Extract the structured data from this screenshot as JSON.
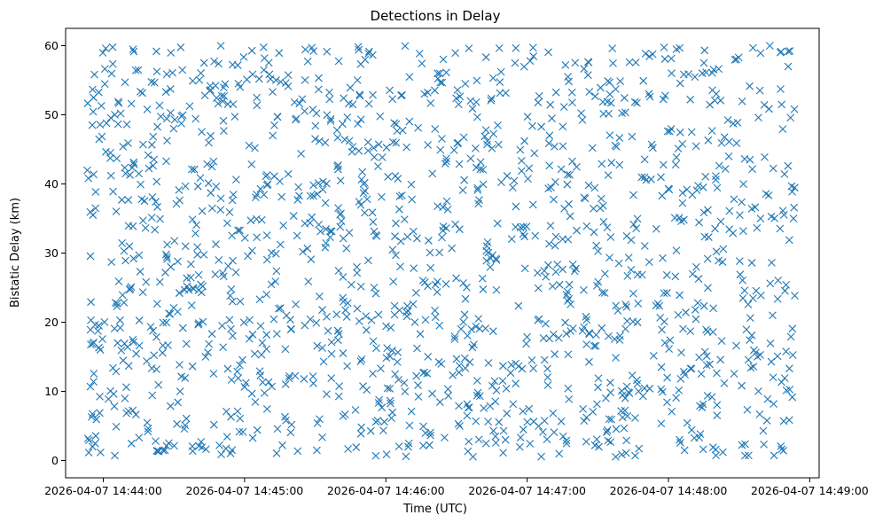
{
  "chart_data": {
    "type": "scatter",
    "title": "Detections in Delay",
    "xlabel": "Time (UTC)",
    "ylabel": "Bistatic Delay (km)",
    "marker": "x",
    "color": "#1f77b4",
    "grid": false,
    "legend": "none",
    "x_ticks": [
      "2026-04-07 14:44:00",
      "2026-04-07 14:45:00",
      "2026-04-07 14:46:00",
      "2026-04-07 14:47:00",
      "2026-04-07 14:48:00",
      "2026-04-07 14:49:00"
    ],
    "y_ticks": [
      0,
      10,
      20,
      30,
      40,
      50,
      60
    ],
    "xlim": [
      "2026-04-07 14:43:44",
      "2026-04-07 14:49:04"
    ],
    "ylim": [
      -2.5,
      62.5
    ],
    "x_range": [
      "2026-04-07 14:43:53",
      "2026-04-07 14:48:54"
    ],
    "y_range": [
      0.5,
      60
    ],
    "point_count": 1500
  }
}
